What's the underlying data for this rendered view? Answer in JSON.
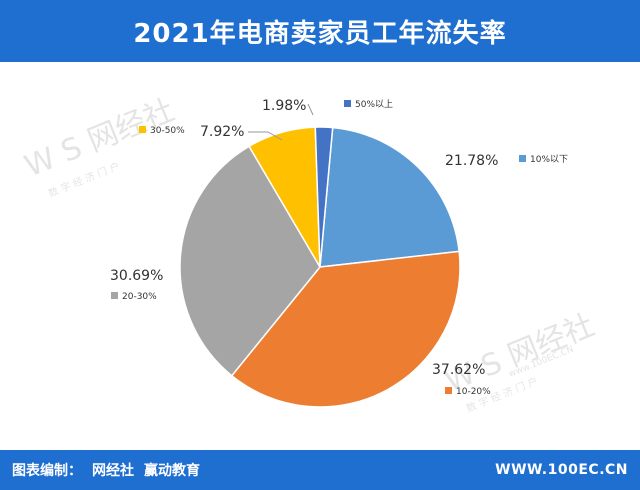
{
  "header": {
    "title": "2021年电商卖家员工年流失率"
  },
  "footer": {
    "credit_label": "图表编制：",
    "credit_org1": "网经社",
    "credit_org2": "赢动教育",
    "website": "WWW.100EC.CN"
  },
  "watermark": {
    "logo": "W S 网经社",
    "subtitle": "数 字 经 济 门 户",
    "url": "www.100EC.CN"
  },
  "colors": {
    "header_bg": "#1f6fd1",
    "footer_bg": "#1f6fd1",
    "slice_10pct_below": "#5b9bd5",
    "slice_10_20": "#ed7d31",
    "slice_20_30": "#a5a5a5",
    "slice_30_50": "#ffc000",
    "slice_50_above": "#4472c4"
  },
  "chart_data": {
    "type": "pie",
    "title": "2021年电商卖家员工年流失率",
    "slices": [
      {
        "label": "10%以下",
        "value": 21.78,
        "value_label": "21.78%",
        "color": "#5b9bd5"
      },
      {
        "label": "10-20%",
        "value": 37.62,
        "value_label": "37.62%",
        "color": "#ed7d31"
      },
      {
        "label": "20-30%",
        "value": 30.69,
        "value_label": "30.69%",
        "color": "#a5a5a5"
      },
      {
        "label": "30-50%",
        "value": 7.92,
        "value_label": "7.92%",
        "color": "#ffc000"
      },
      {
        "label": "50%以上",
        "value": 1.98,
        "value_label": "1.98%",
        "color": "#4472c4"
      }
    ]
  }
}
